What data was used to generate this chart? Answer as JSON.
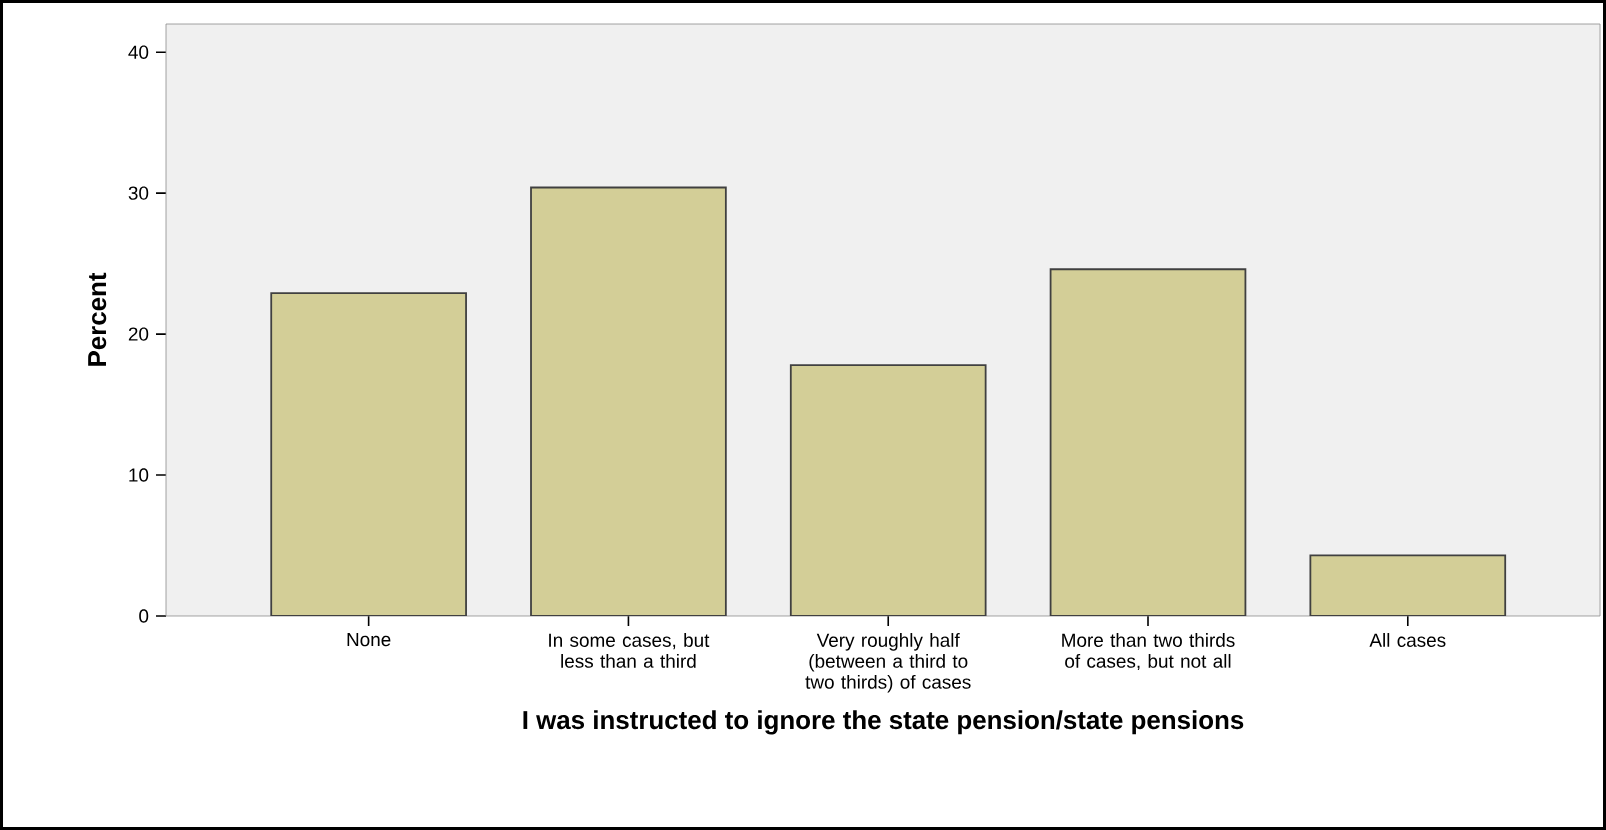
{
  "chart_data": {
    "type": "bar",
    "xlabel": "I was instructed to ignore the state pension/state pensions",
    "ylabel": "Percent",
    "categories": [
      "None",
      "In some cases, but less than a third",
      "Very roughly half (between a third to two thirds) of cases",
      "More than two thirds of cases, but not all",
      "All cases"
    ],
    "values": [
      22.9,
      30.4,
      17.8,
      24.6,
      4.3
    ],
    "color": "#d3ce97",
    "ylim": [
      0,
      42
    ],
    "yticks": [
      0,
      10,
      20,
      30,
      40
    ]
  }
}
